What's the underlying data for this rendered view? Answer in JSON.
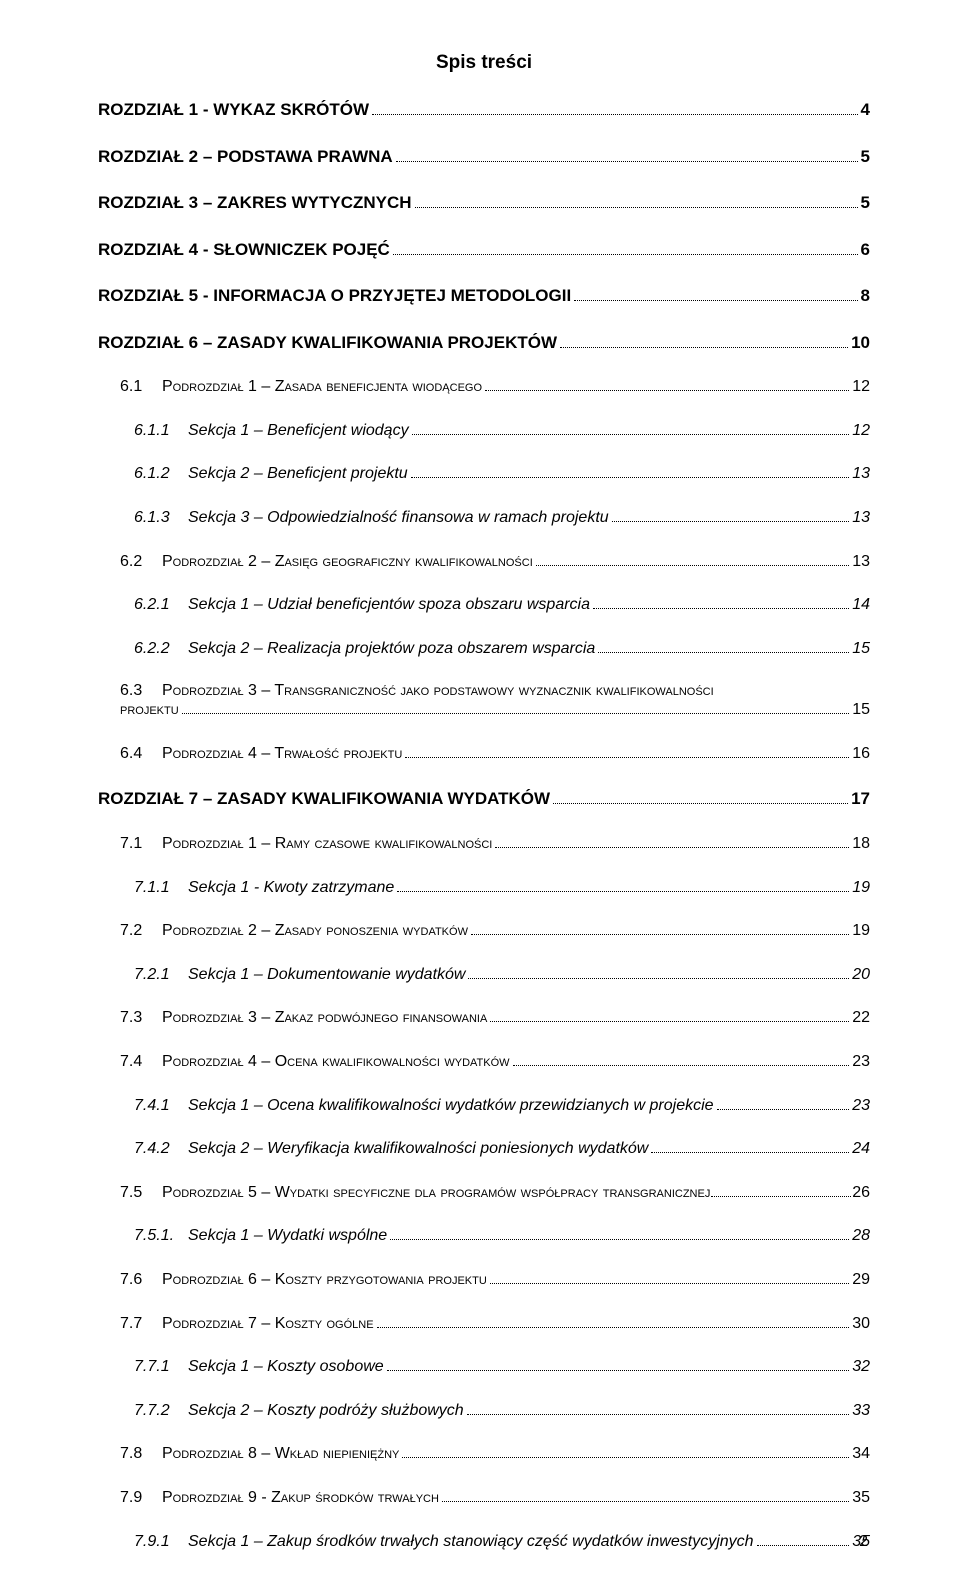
{
  "doc": {
    "title": "Spis treści",
    "page_number": "2",
    "colors": {
      "text": "#000000",
      "background": "#ffffff"
    },
    "fonts": {
      "family": "Arial",
      "title_size_pt": 14,
      "l0_size_pt": 13,
      "l1_size_pt": 12,
      "l2_size_pt": 12
    }
  },
  "toc": [
    {
      "level": 0,
      "num": "",
      "label": "ROZDZIAŁ 1 - WYKAZ SKRÓTÓW",
      "page": "4"
    },
    {
      "level": 0,
      "num": "",
      "label": "ROZDZIAŁ 2 – PODSTAWA PRAWNA",
      "page": "5"
    },
    {
      "level": 0,
      "num": "",
      "label": "ROZDZIAŁ 3 – ZAKRES WYTYCZNYCH",
      "page": "5"
    },
    {
      "level": 0,
      "num": "",
      "label": "ROZDZIAŁ 4 - SŁOWNICZEK POJĘĆ",
      "page": "6"
    },
    {
      "level": 0,
      "num": "",
      "label": "ROZDZIAŁ 5 - INFORMACJA O PRZYJĘTEJ METODOLOGII",
      "page": "8"
    },
    {
      "level": 0,
      "num": "",
      "label": "ROZDZIAŁ 6 – ZASADY KWALIFIKOWANIA PROJEKTÓW",
      "page": "10"
    },
    {
      "level": 1,
      "num": "6.1",
      "label": "Podrozdział 1 – Zasada beneficjenta wiodącego",
      "page": "12"
    },
    {
      "level": 2,
      "num": "6.1.1",
      "label": "Sekcja 1 – Beneficjent wiodący",
      "page": "12"
    },
    {
      "level": 2,
      "num": "6.1.2",
      "label": "Sekcja 2 – Beneficjent projektu",
      "page": "13"
    },
    {
      "level": 2,
      "num": "6.1.3",
      "label": "Sekcja 3 – Odpowiedzialność finansowa w ramach projektu",
      "page": "13"
    },
    {
      "level": 1,
      "num": "6.2",
      "label": "Podrozdział 2 – Zasięg geograficzny kwalifikowalności",
      "page": "13"
    },
    {
      "level": 2,
      "num": "6.2.1",
      "label": "Sekcja 1 – Udział beneficjentów spoza obszaru wsparcia",
      "page": "14"
    },
    {
      "level": 2,
      "num": "6.2.2",
      "label": "Sekcja 2 – Realizacja projektów poza obszarem wsparcia",
      "page": "15"
    },
    {
      "level": "1wrap",
      "num": "6.3",
      "label1": "Podrozdział 3 – Transgraniczność jako podstawowy wyznacznik kwalifikowalności",
      "label2": "projektu",
      "page": "15"
    },
    {
      "level": 1,
      "num": "6.4",
      "label": "Podrozdział 4 – Trwałość projektu",
      "page": "16"
    },
    {
      "level": 0,
      "num": "",
      "label": "ROZDZIAŁ 7 – ZASADY KWALIFIKOWANIA WYDATKÓW",
      "page": "17"
    },
    {
      "level": 1,
      "num": "7.1",
      "label": "Podrozdział 1 – Ramy czasowe kwalifikowalności",
      "page": "18"
    },
    {
      "level": 2,
      "num": "7.1.1",
      "label": "Sekcja 1 - Kwoty zatrzymane",
      "page": "19"
    },
    {
      "level": 1,
      "num": "7.2",
      "label": "Podrozdział 2 – Zasady ponoszenia wydatków",
      "page": "19"
    },
    {
      "level": 2,
      "num": "7.2.1",
      "label": "Sekcja 1 – Dokumentowanie wydatków",
      "page": "20"
    },
    {
      "level": 1,
      "num": "7.3",
      "label": "Podrozdział 3 – Zakaz podwójnego finansowania",
      "page": "22"
    },
    {
      "level": 1,
      "num": "7.4",
      "label": "Podrozdział 4 – Ocena kwalifikowalności wydatków",
      "page": "23"
    },
    {
      "level": 2,
      "num": "7.4.1",
      "label": "Sekcja 1 – Ocena kwalifikowalności wydatków przewidzianych w projekcie",
      "page": "23"
    },
    {
      "level": 2,
      "num": "7.4.2",
      "label": "Sekcja 2 – Weryfikacja kwalifikowalności poniesionych wydatków",
      "page": "24"
    },
    {
      "level": 1,
      "num": "7.5",
      "label": "Podrozdział 5 – Wydatki specyficzne dla programów współpracy transgranicznej",
      "page": "26",
      "tight": true
    },
    {
      "level": 2,
      "num": "7.5.1.",
      "label": "Sekcja 1 – Wydatki wspólne",
      "page": "28"
    },
    {
      "level": 1,
      "num": "7.6",
      "label": "Podrozdział 6 – Koszty przygotowania projektu",
      "page": "29"
    },
    {
      "level": 1,
      "num": "7.7",
      "label": "Podrozdział 7 – Koszty ogólne",
      "page": "30"
    },
    {
      "level": 2,
      "num": "7.7.1",
      "label": "Sekcja 1 – Koszty osobowe",
      "page": "32"
    },
    {
      "level": 2,
      "num": "7.7.2",
      "label": "Sekcja 2 – Koszty podróży służbowych",
      "page": "33"
    },
    {
      "level": 1,
      "num": "7.8",
      "label": "Podrozdział 8 – Wkład niepieniężny",
      "page": "34"
    },
    {
      "level": 1,
      "num": "7.9",
      "label": "Podrozdział 9 - Zakup środków trwałych",
      "page": "35"
    },
    {
      "level": 2,
      "num": "7.9.1",
      "label": "Sekcja 1 – Zakup środków trwałych stanowiący część wydatków inwestycyjnych",
      "page": "35"
    }
  ]
}
